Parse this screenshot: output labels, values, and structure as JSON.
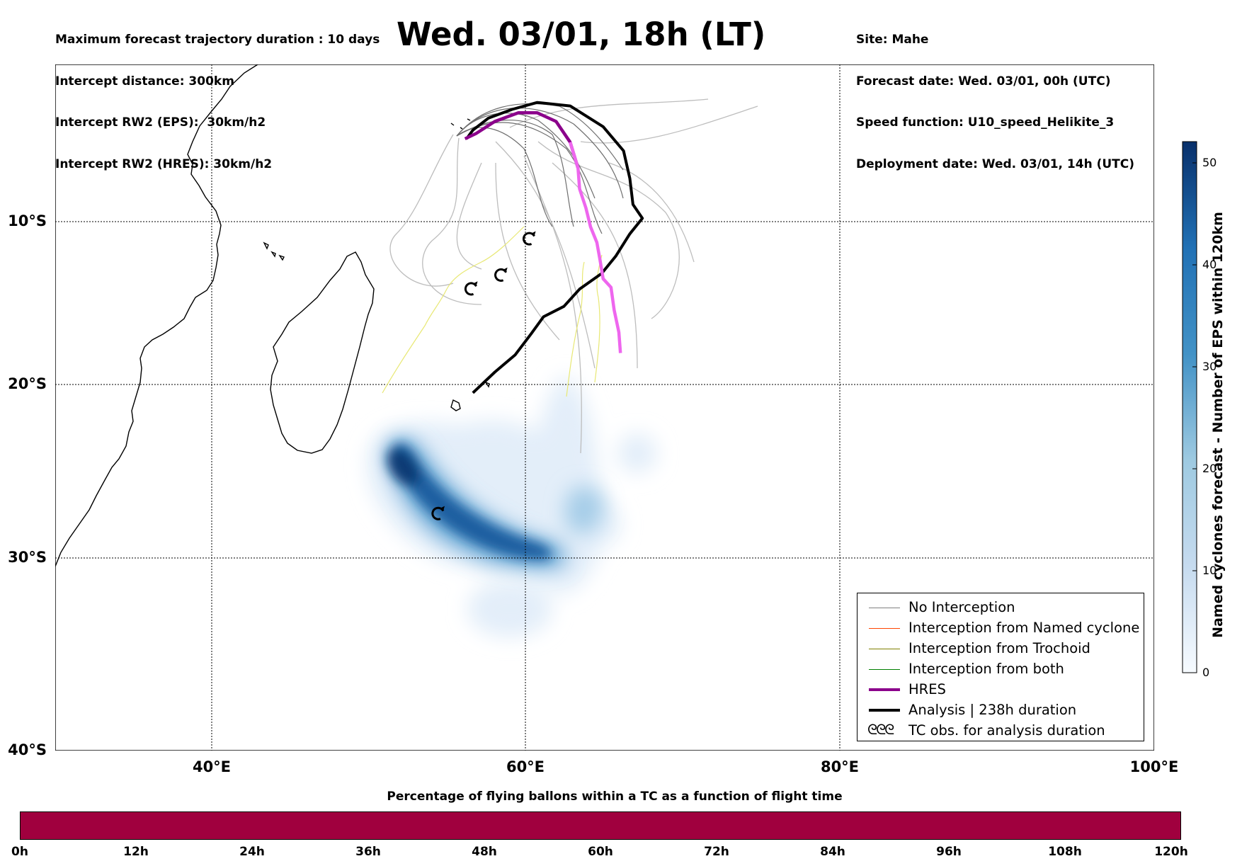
{
  "header_left": [
    "Maximum forecast trajectory duration : 10 days",
    "Intercept distance: 300km",
    "Intercept RW2 (EPS):  30km/h2",
    "Intercept RW2 (HRES): 30km/h2"
  ],
  "header_right": [
    "Site: Mahe",
    "Forecast date: Wed. 03/01, 00h (UTC)",
    "Speed function: U10_speed_Helikite_3",
    "Deployment date: Wed. 03/01, 14h (UTC)"
  ],
  "title": "Wed. 03/01, 18h (LT)",
  "map": {
    "lat_labels": [
      "10°S",
      "20°S",
      "30°S",
      "40°S"
    ],
    "lon_labels": [
      "40°E",
      "60°E",
      "80°E",
      "100°E"
    ],
    "lon_range": [
      30,
      100
    ],
    "lat_range": [
      -40,
      -0.3
    ],
    "gridlines": true
  },
  "legend": {
    "placement": "lower-right",
    "items": [
      {
        "label": "No Interception",
        "color": "#808080"
      },
      {
        "label": "Interception from Named cyclone",
        "color": "#ff4500"
      },
      {
        "label": "Interception from Trochoid",
        "color": "#808000"
      },
      {
        "label": "Interception from both",
        "color": "#008000"
      },
      {
        "label": "HRES",
        "color": "#8b008b"
      },
      {
        "label": "Analysis | 238h duration",
        "color": "#000000"
      },
      {
        "label": "TC obs. for analysis duration",
        "symbol": "ᘓᘓᘓ"
      }
    ]
  },
  "colorbar": {
    "title": "Named cyclones forecast - Number of EPS within 120km",
    "ticks": [
      "0",
      "10",
      "20",
      "30",
      "40",
      "50"
    ],
    "colormap": "Blues"
  },
  "bottom": {
    "title": "Percentage of flying ballons within a TC as a function of flight time",
    "bar_color": "#a0003e",
    "ticks": [
      "0h",
      "12h",
      "24h",
      "36h",
      "48h",
      "60h",
      "72h",
      "84h",
      "96h",
      "108h",
      "120h"
    ]
  },
  "tracks": {
    "analysis": [
      [
        56.6,
        -19.3
      ],
      [
        58,
        -18.1
      ],
      [
        59.3,
        -17.1
      ],
      [
        60.3,
        -15.9
      ],
      [
        61.1,
        -14.9
      ],
      [
        62.4,
        -14.3
      ],
      [
        63.4,
        -13.3
      ],
      [
        64.8,
        -12.4
      ],
      [
        65.7,
        -11.4
      ],
      [
        66.6,
        -10.1
      ],
      [
        67.4,
        -9.2
      ],
      [
        66.8,
        -8.4
      ],
      [
        66.6,
        -6.9
      ],
      [
        66.2,
        -5.3
      ],
      [
        64.9,
        -3.9
      ],
      [
        62.8,
        -2.7
      ],
      [
        60.7,
        -2.5
      ],
      [
        59.1,
        -2.9
      ],
      [
        57.6,
        -3.4
      ],
      [
        56.6,
        -4.1
      ],
      [
        56.2,
        -4.6
      ]
    ],
    "hres": [
      [
        66,
        -17.0
      ],
      [
        65.9,
        -15.8
      ],
      [
        65.6,
        -14.5
      ],
      [
        65.4,
        -13.2
      ],
      [
        64.9,
        -12.7
      ],
      [
        64.7,
        -11.6
      ],
      [
        64.5,
        -10.6
      ],
      [
        64.1,
        -9.7
      ],
      [
        63.8,
        -8.6
      ],
      [
        63.4,
        -7.5
      ],
      [
        63.3,
        -6.3
      ],
      [
        62.8,
        -4.8
      ],
      [
        61.9,
        -3.6
      ],
      [
        60.7,
        -3.1
      ],
      [
        59.5,
        -3.1
      ],
      [
        58,
        -3.6
      ],
      [
        56.8,
        -4.3
      ],
      [
        56.1,
        -4.6
      ]
    ],
    "tc_obs": [
      [
        60.2,
        -10.4
      ],
      [
        58.4,
        -12.5
      ],
      [
        56.5,
        -13.3
      ],
      [
        54.4,
        -26.3
      ]
    ]
  }
}
